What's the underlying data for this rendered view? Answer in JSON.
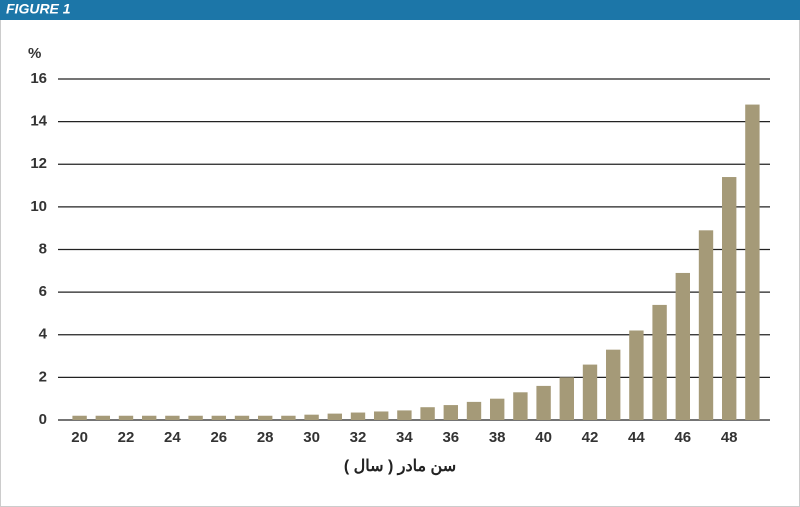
{
  "header": {
    "title": "FIGURE 1"
  },
  "chart_data": {
    "type": "bar",
    "y_label": "%",
    "x_label": "سن مادر ( سال )",
    "categories": [
      "20",
      null,
      "22",
      null,
      "24",
      null,
      "26",
      null,
      "28",
      null,
      "30",
      null,
      "32",
      null,
      "34",
      null,
      "36",
      null,
      "38",
      null,
      "40",
      null,
      "42",
      null,
      "44",
      null,
      "46",
      null,
      "48",
      null
    ],
    "values": [
      0.2,
      0.2,
      0.2,
      0.2,
      0.2,
      0.2,
      0.2,
      0.2,
      0.2,
      0.2,
      0.25,
      0.3,
      0.35,
      0.4,
      0.45,
      0.6,
      0.7,
      0.85,
      1.0,
      1.3,
      1.6,
      2.0,
      2.6,
      3.3,
      4.2,
      5.4,
      6.9,
      8.9,
      11.4,
      14.8
    ],
    "color": "#a59a78",
    "ylim": [
      0,
      16
    ],
    "yticks": [
      0,
      2,
      4,
      6,
      8,
      10,
      12,
      14,
      16
    ],
    "grid": true
  }
}
